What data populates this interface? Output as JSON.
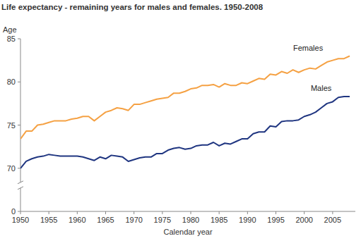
{
  "chart_data": {
    "type": "line",
    "title": "Life expectancy - remaining years for males and females. 1950-2008",
    "y_label": "Age",
    "x_label": "Calendar year",
    "x": [
      1950,
      1951,
      1952,
      1953,
      1954,
      1955,
      1956,
      1957,
      1958,
      1959,
      1960,
      1961,
      1962,
      1963,
      1964,
      1965,
      1966,
      1967,
      1968,
      1969,
      1970,
      1971,
      1972,
      1973,
      1974,
      1975,
      1976,
      1977,
      1978,
      1979,
      1980,
      1981,
      1982,
      1983,
      1984,
      1985,
      1986,
      1987,
      1988,
      1989,
      1990,
      1991,
      1992,
      1993,
      1994,
      1995,
      1996,
      1997,
      1998,
      1999,
      2000,
      2001,
      2002,
      2003,
      2004,
      2005,
      2006,
      2007,
      2008
    ],
    "series": [
      {
        "name": "Females",
        "color": "#f5a143",
        "values": [
          73.4,
          74.3,
          74.3,
          75.0,
          75.1,
          75.3,
          75.5,
          75.5,
          75.5,
          75.7,
          75.8,
          76.0,
          76.0,
          75.5,
          76.0,
          76.5,
          76.7,
          77.0,
          76.9,
          76.7,
          77.4,
          77.4,
          77.6,
          77.8,
          78.0,
          78.1,
          78.2,
          78.7,
          78.7,
          78.9,
          79.2,
          79.3,
          79.6,
          79.6,
          79.7,
          79.4,
          79.8,
          79.6,
          79.6,
          79.9,
          79.8,
          80.1,
          80.4,
          80.3,
          80.9,
          80.8,
          81.2,
          81.0,
          81.4,
          81.1,
          81.4,
          81.6,
          81.5,
          81.9,
          82.3,
          82.5,
          82.7,
          82.7,
          83.0
        ]
      },
      {
        "name": "Males",
        "color": "#1f3580",
        "values": [
          69.9,
          70.8,
          71.1,
          71.3,
          71.4,
          71.6,
          71.5,
          71.4,
          71.4,
          71.4,
          71.4,
          71.3,
          71.1,
          70.9,
          71.3,
          71.1,
          71.5,
          71.4,
          71.3,
          70.8,
          71.0,
          71.2,
          71.3,
          71.3,
          71.7,
          71.7,
          72.1,
          72.3,
          72.4,
          72.2,
          72.3,
          72.6,
          72.7,
          72.7,
          73.0,
          72.6,
          72.9,
          72.8,
          73.1,
          73.4,
          73.4,
          74.0,
          74.2,
          74.2,
          74.9,
          74.8,
          75.4,
          75.5,
          75.5,
          75.6,
          76.0,
          76.2,
          76.5,
          77.0,
          77.5,
          77.7,
          78.2,
          78.3,
          78.3
        ]
      }
    ],
    "xlim": [
      1950,
      2009
    ],
    "xticks": [
      1950,
      1955,
      1960,
      1965,
      1970,
      1975,
      1980,
      1985,
      1990,
      1995,
      2000,
      2005
    ],
    "ylim": [
      0,
      85
    ],
    "yticks": [
      0,
      70,
      75,
      80,
      85
    ],
    "grid": false
  }
}
